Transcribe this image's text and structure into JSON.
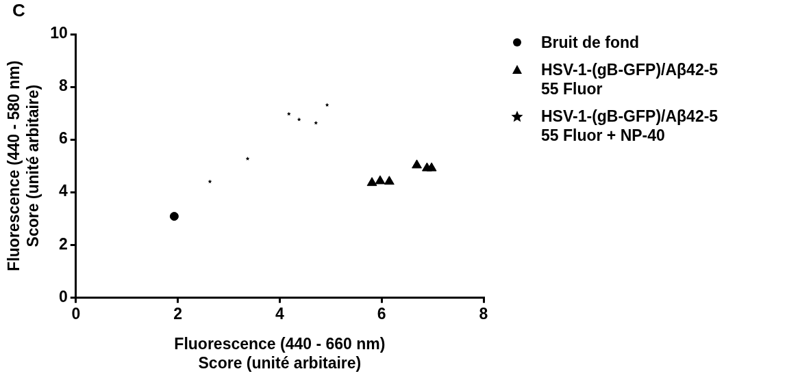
{
  "chart_data": {
    "type": "scatter",
    "annotations": [
      "C"
    ],
    "xlabel": "Fluorescence (440 - 660 nm)\nScore (unité arbitaire)",
    "ylabel": "Fluorescence (440 - 580 nm)\nScore (unité arbitaire)",
    "xlim": [
      0,
      8
    ],
    "xticks": [
      0,
      2,
      4,
      6,
      8
    ],
    "ylim": [
      0,
      10
    ],
    "yticks": [
      0,
      2,
      4,
      6,
      8,
      10
    ],
    "grid": false,
    "legend": "right",
    "series": [
      {
        "name": "Bruit de fond",
        "color": "#000000",
        "marker": "circle",
        "x": [
          1.93
        ],
        "values": [
          3.08
        ]
      },
      {
        "name": "HSV-1-(gB-GFP)/Aβ42-5\n55 Fluor",
        "color": "#000000",
        "marker": "triangle",
        "x": [
          5.81,
          5.97,
          6.15,
          6.69,
          6.89,
          6.98
        ],
        "values": [
          4.35,
          4.42,
          4.4,
          5.02,
          4.91,
          4.91
        ]
      },
      {
        "name": "HSV-1-(gB-GFP)/Aβ42-5\n55 Fluor + NP-40",
        "color": "#000000",
        "marker": "star",
        "x": [
          2.63,
          3.37,
          4.18,
          4.38,
          4.71,
          4.93
        ],
        "values": [
          4.4,
          5.27,
          6.97,
          6.76,
          6.63,
          7.31
        ]
      }
    ]
  }
}
